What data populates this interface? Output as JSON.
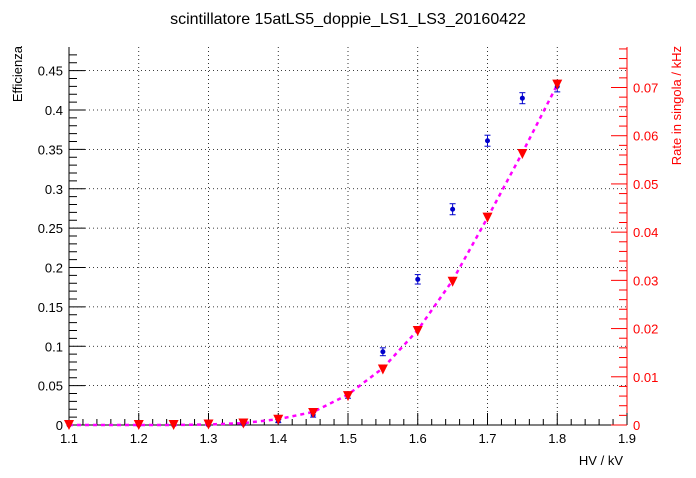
{
  "chart_data": {
    "type": "scatter",
    "title": "scintillatore 15atLS5_doppie_LS1_LS3_20160422",
    "xlabel": "HV / kV",
    "ylabel_left": "Efficienza",
    "ylabel_right": "Rate in singola / kHz",
    "xlim": [
      1.1,
      1.9
    ],
    "ylim_left": [
      0,
      0.48
    ],
    "ylim_right": [
      0,
      0.0784
    ],
    "x_ticks": [
      1.1,
      1.2,
      1.3,
      1.4,
      1.5,
      1.6,
      1.7,
      1.8,
      1.9
    ],
    "x_tick_labels": [
      "1.1",
      "1.2",
      "1.3",
      "1.4",
      "1.5",
      "1.6",
      "1.7",
      "1.8",
      "1.9"
    ],
    "y_left_ticks": [
      0,
      0.05,
      0.1,
      0.15,
      0.2,
      0.25,
      0.3,
      0.35,
      0.4,
      0.45
    ],
    "y_left_tick_labels": [
      "0",
      "0.05",
      "0.1",
      "0.15",
      "0.2",
      "0.25",
      "0.3",
      "0.35",
      "0.4",
      "0.45"
    ],
    "y_right_ticks": [
      0,
      0.01,
      0.02,
      0.03,
      0.04,
      0.05,
      0.06,
      0.07
    ],
    "y_right_tick_labels": [
      "0",
      "0.01",
      "0.02",
      "0.03",
      "0.04",
      "0.05",
      "0.06",
      "0.07"
    ],
    "grid": true,
    "series": [
      {
        "axis": "left",
        "marker": "circle",
        "color": "#0000cc",
        "x": [
          1.1,
          1.2,
          1.25,
          1.3,
          1.35,
          1.4,
          1.45,
          1.5,
          1.55,
          1.6,
          1.65,
          1.7,
          1.75,
          1.8
        ],
        "y": [
          0,
          0,
          0,
          0,
          0.001,
          0.005,
          0.013,
          0.038,
          0.093,
          0.185,
          0.274,
          0.361,
          0.415,
          0.43
        ],
        "yerr": [
          0,
          0,
          0,
          0,
          0.001,
          0.002,
          0.003,
          0.004,
          0.005,
          0.006,
          0.007,
          0.007,
          0.007,
          0.007
        ]
      },
      {
        "axis": "right",
        "marker": "triangle-down",
        "color": "#ff0000",
        "x": [
          1.1,
          1.2,
          1.25,
          1.3,
          1.35,
          1.4,
          1.45,
          1.5,
          1.55,
          1.6,
          1.65,
          1.7,
          1.75,
          1.8
        ],
        "y": [
          0,
          0,
          0,
          0.0001,
          0.0003,
          0.0011,
          0.0025,
          0.006,
          0.0115,
          0.0195,
          0.0297,
          0.043,
          0.0562,
          0.0706
        ]
      }
    ],
    "fit": {
      "axis": "right",
      "color": "#ff00ff",
      "style": "dashed",
      "x": [
        1.1,
        1.15,
        1.2,
        1.25,
        1.3,
        1.35,
        1.4,
        1.45,
        1.5,
        1.55,
        1.6,
        1.65,
        1.7,
        1.75,
        1.8
      ],
      "y": [
        0,
        0,
        0,
        0,
        0.0001,
        0.0004,
        0.0012,
        0.0027,
        0.0063,
        0.0118,
        0.0197,
        0.03,
        0.043,
        0.0565,
        0.0706
      ]
    }
  }
}
